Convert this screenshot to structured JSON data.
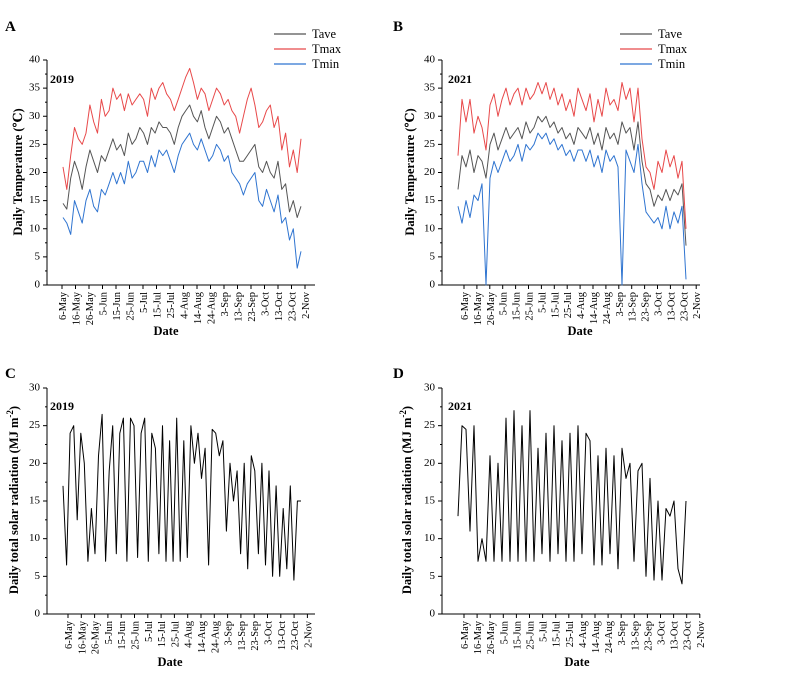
{
  "figure": {
    "colors": {
      "Tave": "#555555",
      "Tmax": "#e8494a",
      "Tmin": "#2f74d0",
      "radiation": "#000000"
    }
  },
  "chart_data": [
    {
      "panel": "A",
      "type": "line",
      "year_label": "2019",
      "xlabel": "Date",
      "ylabel": "Daily Temperature (℃)",
      "ylim": [
        0,
        40
      ],
      "yticks": [
        "0",
        "5",
        "10",
        "15",
        "20",
        "25",
        "30",
        "35",
        "40"
      ],
      "xticks": [
        "6-May",
        "16-May",
        "26-May",
        "5-Jun",
        "15-Jun",
        "25-Jun",
        "5-Jul",
        "15-Jul",
        "25-Jul",
        "4-Aug",
        "14-Aug",
        "24-Aug",
        "3-Sep",
        "13-Sep",
        "23-Sep",
        "3-Oct",
        "13-Oct",
        "23-Oct",
        "2-Nov"
      ],
      "legend": [
        "Tave",
        "Tmax",
        "Tmin"
      ],
      "legend_position": "top-right",
      "series": [
        {
          "name": "Tave",
          "values": [
            14.5,
            13.5,
            19,
            22,
            20,
            17,
            21,
            24,
            22,
            20,
            23,
            22,
            24,
            26,
            24,
            25,
            23,
            27,
            25,
            26,
            28,
            27,
            25,
            28,
            27,
            29,
            28,
            28,
            27,
            25,
            28,
            30,
            31,
            32,
            30,
            29,
            31,
            28,
            26,
            28,
            30,
            29,
            27,
            28,
            26,
            24,
            22,
            22,
            23,
            24,
            25,
            21,
            20,
            22,
            20,
            19,
            22,
            17,
            18,
            13,
            15,
            12,
            14
          ]
        },
        {
          "name": "Tmax",
          "values": [
            21,
            17,
            23,
            28,
            26,
            25,
            27,
            32,
            29,
            27,
            33,
            30,
            31,
            35,
            33,
            34,
            31,
            34,
            32,
            33,
            34,
            33,
            30,
            35,
            33,
            35,
            36,
            34,
            33,
            31,
            33,
            35,
            37,
            38.5,
            36,
            33,
            35,
            34,
            31,
            33,
            35,
            34,
            32,
            33,
            31,
            30,
            27,
            30,
            33,
            35,
            32,
            28,
            29,
            31,
            32,
            28,
            30,
            24,
            27,
            21,
            24,
            20,
            26
          ]
        },
        {
          "name": "Tmin",
          "values": [
            12,
            11,
            9,
            15,
            13,
            11,
            15,
            17,
            14,
            13,
            17,
            16,
            18,
            20,
            18,
            20,
            18,
            22,
            19,
            20,
            22,
            22,
            20,
            23,
            21,
            24,
            23,
            24,
            22,
            20,
            23,
            25,
            26,
            27,
            25,
            24,
            26,
            24,
            22,
            23,
            25,
            24,
            22,
            23,
            20,
            19,
            18,
            16,
            18,
            19,
            20,
            15,
            14,
            17,
            15,
            13,
            16,
            11,
            12,
            8,
            10,
            3,
            6
          ]
        }
      ]
    },
    {
      "panel": "B",
      "type": "line",
      "year_label": "2021",
      "xlabel": "Date",
      "ylabel": "Daily Temperature (℃)",
      "ylim": [
        0,
        40
      ],
      "yticks": [
        "0",
        "5",
        "10",
        "15",
        "20",
        "25",
        "30",
        "35",
        "40"
      ],
      "xticks": [
        "6-May",
        "16-May",
        "26-May",
        "5-Jun",
        "15-Jun",
        "25-Jun",
        "5-Jul",
        "15-Jul",
        "25-Jul",
        "4-Aug",
        "14-Aug",
        "24-Aug",
        "3-Sep",
        "13-Sep",
        "23-Sep",
        "3-Oct",
        "13-Oct",
        "23-Oct",
        "2-Nov"
      ],
      "legend": [
        "Tave",
        "Tmax",
        "Tmin"
      ],
      "legend_position": "top-right",
      "series": [
        {
          "name": "Tave",
          "values": [
            17,
            23,
            21,
            24,
            20,
            23,
            22,
            19,
            25,
            27,
            24,
            26,
            28,
            26,
            27,
            28,
            26,
            29,
            27,
            28,
            30,
            29,
            30,
            28,
            29,
            27,
            28,
            26,
            27,
            25,
            28,
            27,
            26,
            28,
            25,
            27,
            24,
            28,
            26,
            27,
            25,
            29,
            27,
            28,
            24,
            29,
            22,
            18,
            17,
            14,
            16,
            15,
            17,
            15,
            17,
            16,
            18,
            7
          ]
        },
        {
          "name": "Tmax",
          "values": [
            23,
            33,
            29,
            33,
            27,
            30,
            28,
            24,
            32,
            34,
            30,
            33,
            35,
            32,
            34,
            35,
            32,
            35,
            33,
            34,
            36,
            34,
            36,
            33,
            35,
            32,
            34,
            31,
            33,
            30,
            35,
            33,
            31,
            34,
            29,
            33,
            30,
            35,
            32,
            33,
            31,
            36,
            33,
            35,
            29,
            35,
            26,
            21,
            20,
            17,
            22,
            20,
            24,
            21,
            23,
            19,
            22,
            10
          ]
        },
        {
          "name": "Tmin",
          "values": [
            14,
            11,
            15,
            12,
            16,
            15,
            18,
            0,
            19,
            22,
            20,
            22,
            24,
            22,
            23,
            25,
            22,
            25,
            24,
            25,
            27,
            26,
            27,
            25,
            26,
            24,
            25,
            23,
            24,
            22,
            24,
            24,
            22,
            24,
            21,
            23,
            20,
            24,
            22,
            23,
            21,
            0,
            24,
            22,
            20,
            25,
            18,
            13,
            12,
            11,
            12,
            10,
            14,
            10,
            13,
            11,
            14,
            1
          ]
        }
      ]
    },
    {
      "panel": "C",
      "type": "line",
      "year_label": "2019",
      "xlabel": "Date",
      "ylabel": "Daily total solar radiation (MJ m",
      "ylabel_sup": "-2",
      "ylabel_close": ")",
      "ylim": [
        0,
        30
      ],
      "yticks": [
        "0",
        "5",
        "10",
        "15",
        "20",
        "25",
        "30"
      ],
      "xticks": [
        "6-May",
        "16-May",
        "26-May",
        "5-Jun",
        "15-Jun",
        "25-Jun",
        "5-Jul",
        "15-Jul",
        "25-Jul",
        "4-Aug",
        "14-Aug",
        "24-Aug",
        "3-Sep",
        "13-Sep",
        "23-Sep",
        "3-Oct",
        "13-Oct",
        "23-Oct",
        "2-Nov"
      ],
      "series": [
        {
          "name": "radiation",
          "values": [
            17,
            6.5,
            24,
            25,
            12.5,
            24,
            20,
            7,
            14,
            8,
            21,
            26.5,
            7,
            19,
            25,
            8,
            24,
            26,
            7,
            26,
            25,
            7.5,
            24,
            26,
            7,
            24,
            22,
            8,
            25,
            7,
            23,
            7,
            26,
            7,
            23,
            7.5,
            25,
            20,
            24,
            18,
            22,
            6.5,
            24.5,
            24,
            21,
            23,
            11,
            20,
            15,
            19,
            8,
            20,
            6,
            21,
            19,
            8,
            20,
            6.5,
            19,
            5,
            17,
            5,
            14,
            6,
            17,
            4.5,
            15,
            15
          ]
        }
      ]
    },
    {
      "panel": "D",
      "type": "line",
      "year_label": "2021",
      "xlabel": "Date",
      "ylabel": "Daily total solar radiation (MJ m",
      "ylabel_sup": "-2",
      "ylabel_close": ")",
      "ylim": [
        0,
        30
      ],
      "yticks": [
        "0",
        "5",
        "10",
        "15",
        "20",
        "25",
        "30"
      ],
      "xticks": [
        "6-May",
        "16-May",
        "26-May",
        "5-Jun",
        "15-Jun",
        "25-Jun",
        "5-Jul",
        "15-Jul",
        "25-Jul",
        "4-Aug",
        "14-Aug",
        "24-Aug",
        "3-Sep",
        "13-Sep",
        "23-Sep",
        "3-Oct",
        "13-Oct",
        "23-Oct",
        "2-Nov"
      ],
      "series": [
        {
          "name": "radiation",
          "values": [
            13,
            25,
            24.5,
            11,
            25,
            7,
            10,
            7,
            21,
            7,
            20,
            7,
            26,
            7,
            27,
            7,
            25,
            7,
            27,
            7,
            22,
            8,
            24,
            7,
            25,
            8,
            23,
            7,
            24,
            7,
            25,
            8,
            24,
            23,
            6.5,
            21,
            6.5,
            22,
            8,
            21,
            6,
            22,
            18,
            20,
            7,
            19,
            20,
            5,
            18,
            4.5,
            15,
            4.5,
            14,
            13,
            15,
            6,
            4,
            15
          ]
        }
      ]
    }
  ]
}
